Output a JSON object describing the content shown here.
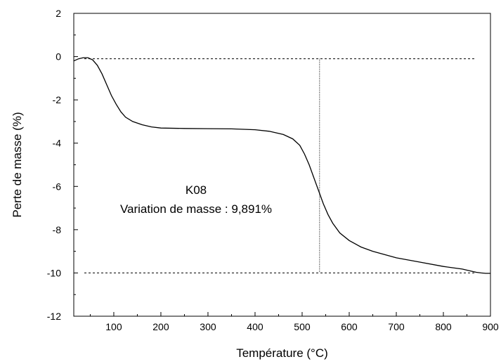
{
  "chart_data": {
    "type": "line",
    "xlabel": "Température (°C)",
    "ylabel": "Perte de masse (%)",
    "xlim": [
      15,
      900
    ],
    "ylim": [
      -12,
      2
    ],
    "x_ticks": [
      100,
      200,
      300,
      400,
      500,
      600,
      700,
      800,
      900
    ],
    "y_ticks": [
      -12,
      -10,
      -8,
      -6,
      -4,
      -2,
      0,
      2
    ],
    "grid": false,
    "annotations": [
      "K08",
      "Variation de masse : 9,891%"
    ],
    "reference_lines": {
      "horizontal": [
        -0.1,
        -10.0
      ],
      "vertical": [
        537
      ]
    },
    "series": [
      {
        "color": "#000000",
        "x": [
          15,
          25,
          35,
          45,
          55,
          65,
          75,
          85,
          95,
          105,
          115,
          125,
          140,
          160,
          180,
          200,
          250,
          300,
          350,
          400,
          430,
          460,
          480,
          495,
          505,
          515,
          525,
          535,
          545,
          555,
          565,
          580,
          600,
          625,
          650,
          700,
          750,
          800,
          840,
          860,
          870,
          880,
          890,
          900
        ],
        "y": [
          -0.2,
          -0.1,
          -0.05,
          -0.05,
          -0.15,
          -0.4,
          -0.8,
          -1.3,
          -1.8,
          -2.2,
          -2.55,
          -2.8,
          -3.0,
          -3.15,
          -3.25,
          -3.3,
          -3.32,
          -3.33,
          -3.34,
          -3.38,
          -3.45,
          -3.6,
          -3.8,
          -4.1,
          -4.5,
          -5.0,
          -5.6,
          -6.2,
          -6.8,
          -7.3,
          -7.7,
          -8.15,
          -8.5,
          -8.8,
          -9.0,
          -9.3,
          -9.5,
          -9.7,
          -9.82,
          -9.92,
          -9.97,
          -10.0,
          -10.02,
          -10.02
        ]
      }
    ]
  }
}
